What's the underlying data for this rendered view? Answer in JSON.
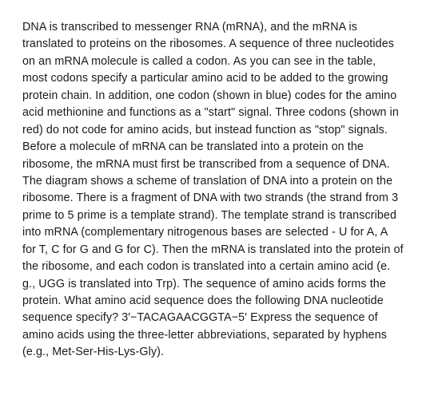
{
  "passage": {
    "text": "DNA is transcribed to messenger RNA (mRNA), and the mRNA is translated to proteins on the ribosomes. A sequence of three nucleotides on an mRNA molecule is called a codon. As you can see in the table, most codons specify a particular amino acid to be added to the growing protein chain. In addition, one codon (shown in blue) codes for the amino acid methionine and functions as a \"start\" signal. Three codons (shown in red) do not code for amino acids, but instead function as \"stop\" signals. Before a molecule of mRNA can be translated into a protein on the ribosome, the mRNA must first be transcribed from a sequence of DNA. The diagram shows a scheme of translation of DNA into a protein on the ribosome. There is a fragment of DNA with two strands (the strand from 3 prime to 5 prime is a template strand). The template strand is transcribed into mRNA (complementary nitrogenous bases are selected - U for A, A for T, C for G and G for C). Then the mRNA is translated into the protein of the ribosome, and each codon is translated into a certain amino acid (e. g., UGG is translated into Trp). The sequence of amino acids forms the protein. What amino acid sequence does the following DNA nucleotide sequence specify? 3′−TACAGAACGGTA−5′ Express the sequence of amino acids using the three-letter abbreviations, separated by hyphens (e.g., Met-Ser-His-Lys-Gly).",
    "text_color": "#1a1a1a",
    "background_color": "#ffffff",
    "font_size": 14.3,
    "line_height": 1.5
  }
}
